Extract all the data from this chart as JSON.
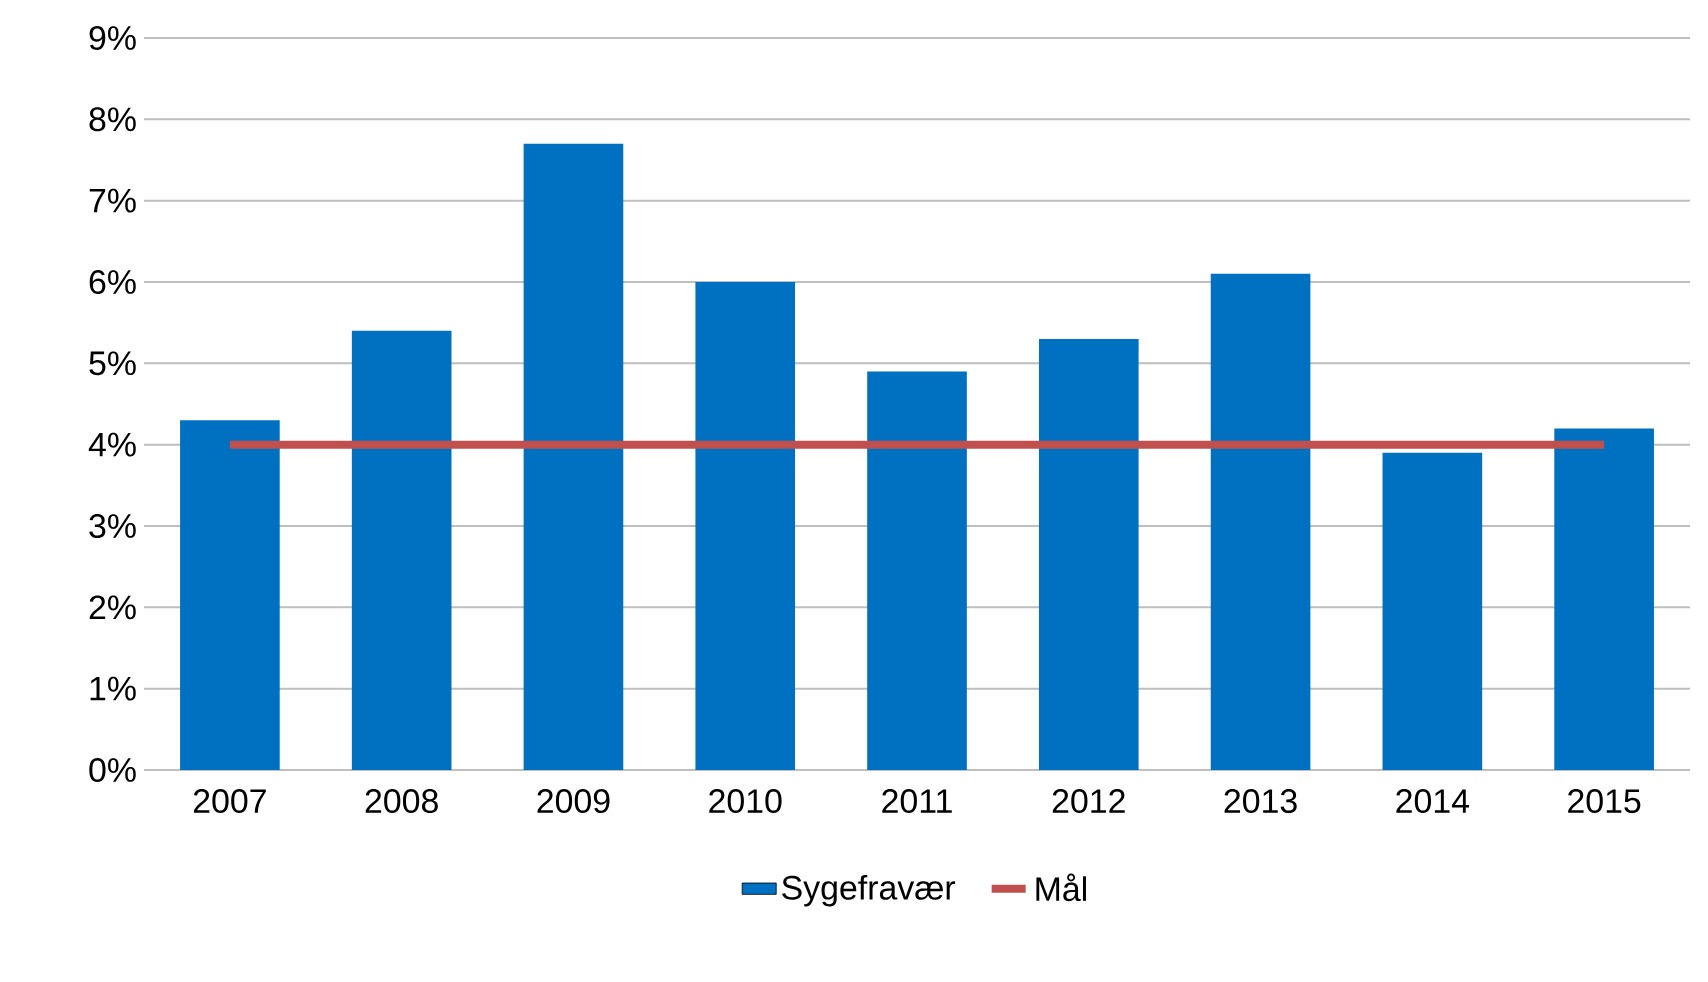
{
  "chart_data": {
    "type": "bar",
    "categories": [
      "2007",
      "2008",
      "2009",
      "2010",
      "2011",
      "2012",
      "2013",
      "2014",
      "2015"
    ],
    "series": [
      {
        "name": "Sygefravær",
        "color": "#0070c0",
        "values": [
          4.3,
          5.4,
          7.7,
          6.0,
          4.9,
          5.3,
          6.1,
          3.9,
          4.2
        ]
      },
      {
        "name": "Mål",
        "type": "line",
        "color": "#c0504d",
        "values": [
          4,
          4,
          4,
          4,
          4,
          4,
          4,
          4,
          4
        ]
      }
    ],
    "ylim": [
      0,
      9
    ],
    "yticks": [
      {
        "value": 0,
        "label": "0%"
      },
      {
        "value": 1,
        "label": "1%"
      },
      {
        "value": 2,
        "label": "2%"
      },
      {
        "value": 3,
        "label": "3%"
      },
      {
        "value": 4,
        "label": "4%"
      },
      {
        "value": 5,
        "label": "5%"
      },
      {
        "value": 6,
        "label": "6%"
      },
      {
        "value": 7,
        "label": "7%"
      },
      {
        "value": 8,
        "label": "8%"
      },
      {
        "value": 9,
        "label": "9%"
      }
    ],
    "grid": "y",
    "legend": "bottom"
  }
}
